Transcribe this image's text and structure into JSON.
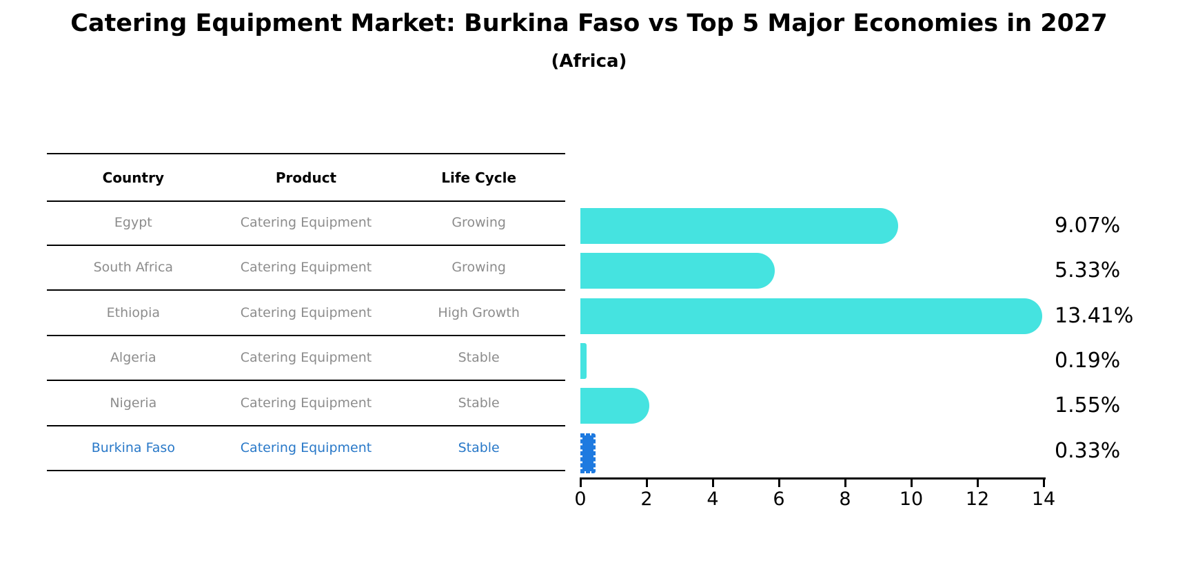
{
  "title": "Catering Equipment Market: Burkina Faso vs Top 5 Major Economies in 2027",
  "subtitle": "(Africa)",
  "table": {
    "headers": [
      "Country",
      "Product",
      "Life Cycle"
    ],
    "rows": [
      {
        "country": "Egypt",
        "product": "Catering Equipment",
        "life_cycle": "Growing",
        "highlighted": false
      },
      {
        "country": "South Africa",
        "product": "Catering Equipment",
        "life_cycle": "Growing",
        "highlighted": false
      },
      {
        "country": "Ethiopia",
        "product": "Catering Equipment",
        "life_cycle": "High Growth",
        "highlighted": false
      },
      {
        "country": "Algeria",
        "product": "Catering Equipment",
        "life_cycle": "Stable",
        "highlighted": false
      },
      {
        "country": "Nigeria",
        "product": "Catering Equipment",
        "life_cycle": "Stable",
        "highlighted": false
      },
      {
        "country": "Burkina Faso",
        "product": "Catering Equipment",
        "life_cycle": "Stable",
        "highlighted": true
      }
    ]
  },
  "chart_data": {
    "type": "bar",
    "orientation": "horizontal",
    "title": "Catering Equipment Market: Burkina Faso vs Top 5 Major Economies in 2027",
    "subtitle": "(Africa)",
    "categories": [
      "Egypt",
      "South Africa",
      "Ethiopia",
      "Algeria",
      "Nigeria",
      "Burkina Faso"
    ],
    "values": [
      9.07,
      5.33,
      13.41,
      0.19,
      1.55,
      0.33
    ],
    "value_labels": [
      "9.07%",
      "5.33%",
      "13.41%",
      "0.19%",
      "1.55%",
      "0.33%"
    ],
    "xlabel": "",
    "ylabel": "",
    "xlim": [
      0,
      14
    ],
    "x_ticks": [
      0,
      2,
      4,
      6,
      8,
      10,
      12,
      14
    ],
    "grid": false,
    "legend": false,
    "bar_color": "#45e3e0",
    "highlight_color": "#1e7ae0",
    "highlight_text_color": "#2878c8",
    "highlight_index": 5
  }
}
